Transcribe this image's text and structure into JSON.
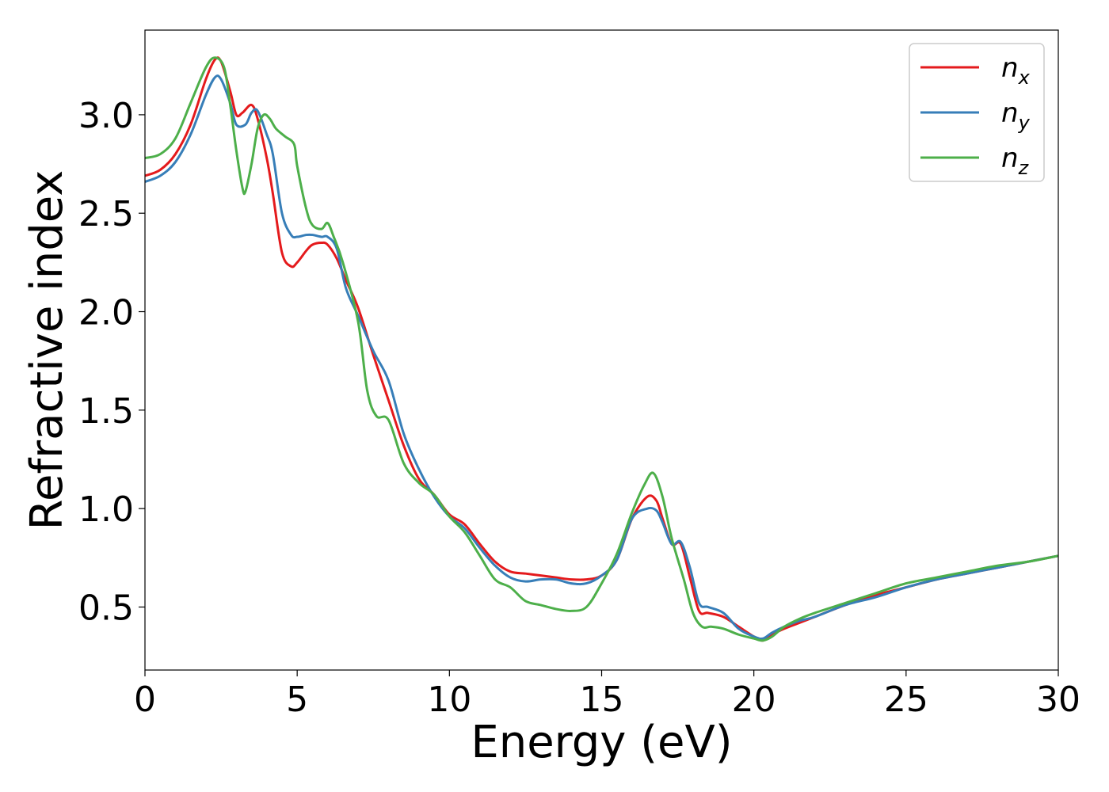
{
  "chart_data": {
    "type": "line",
    "title": "",
    "xlabel": "Energy (eV)",
    "ylabel": "Refractive index",
    "xlim": [
      0,
      30
    ],
    "ylim": [
      0.18,
      3.43
    ],
    "xticks": [
      0,
      5,
      10,
      15,
      20,
      25,
      30
    ],
    "xtick_labels": [
      "0",
      "5",
      "10",
      "15",
      "20",
      "25",
      "30"
    ],
    "yticks": [
      0.5,
      1.0,
      1.5,
      2.0,
      2.5,
      3.0
    ],
    "ytick_labels": [
      "0.5",
      "1.0",
      "1.5",
      "2.0",
      "2.5",
      "3.0"
    ],
    "grid": false,
    "legend_position": "top-right",
    "series": [
      {
        "name": "n",
        "subscript": "x",
        "color": "#e41a1c",
        "x": [
          0,
          0.5,
          1,
          1.5,
          2,
          2.3,
          2.5,
          2.8,
          3.0,
          3.2,
          3.5,
          3.7,
          4.0,
          4.2,
          4.5,
          4.8,
          5.0,
          5.3,
          5.5,
          5.8,
          6.0,
          6.3,
          6.6,
          7.0,
          7.5,
          8.0,
          8.5,
          9.0,
          9.5,
          10.0,
          10.5,
          11.0,
          11.5,
          12.0,
          12.5,
          13.0,
          13.5,
          14.0,
          14.5,
          15.0,
          15.5,
          16.0,
          16.5,
          16.8,
          17.0,
          17.3,
          17.6,
          17.9,
          18.2,
          18.5,
          19.0,
          19.5,
          20.0,
          20.3,
          20.6,
          21.0,
          21.5,
          22.0,
          23.0,
          24.0,
          25.0,
          26.0,
          27.0,
          28.0,
          29.0,
          30.0
        ],
        "y": [
          2.69,
          2.72,
          2.8,
          2.95,
          3.18,
          3.28,
          3.27,
          3.12,
          3.0,
          3.01,
          3.05,
          2.98,
          2.78,
          2.6,
          2.3,
          2.23,
          2.25,
          2.31,
          2.34,
          2.35,
          2.34,
          2.27,
          2.16,
          2.02,
          1.78,
          1.55,
          1.32,
          1.15,
          1.07,
          0.97,
          0.92,
          0.82,
          0.73,
          0.68,
          0.67,
          0.66,
          0.65,
          0.64,
          0.64,
          0.66,
          0.74,
          0.95,
          1.06,
          1.04,
          0.95,
          0.82,
          0.82,
          0.65,
          0.48,
          0.47,
          0.45,
          0.4,
          0.35,
          0.33,
          0.36,
          0.39,
          0.42,
          0.45,
          0.51,
          0.56,
          0.6,
          0.64,
          0.67,
          0.7,
          0.73,
          0.76
        ]
      },
      {
        "name": "n",
        "subscript": "y",
        "color": "#377eb8",
        "x": [
          0,
          0.5,
          1,
          1.5,
          2,
          2.3,
          2.5,
          2.8,
          3.0,
          3.3,
          3.5,
          3.7,
          4.0,
          4.2,
          4.5,
          4.8,
          5.0,
          5.3,
          5.5,
          5.8,
          6.0,
          6.3,
          6.6,
          7.0,
          7.5,
          8.0,
          8.5,
          9.0,
          9.5,
          10.0,
          10.5,
          11.0,
          11.5,
          12.0,
          12.5,
          13.0,
          13.5,
          14.0,
          14.5,
          15.0,
          15.5,
          16.0,
          16.5,
          16.8,
          17.0,
          17.3,
          17.6,
          17.9,
          18.2,
          18.5,
          19.0,
          19.5,
          20.0,
          20.3,
          20.6,
          21.0,
          21.5,
          22.0,
          23.0,
          24.0,
          25.0,
          26.0,
          27.0,
          28.0,
          29.0,
          30.0
        ],
        "y": [
          2.66,
          2.69,
          2.76,
          2.9,
          3.1,
          3.19,
          3.18,
          3.06,
          2.95,
          2.95,
          3.01,
          3.02,
          2.9,
          2.8,
          2.5,
          2.39,
          2.38,
          2.39,
          2.39,
          2.38,
          2.38,
          2.32,
          2.12,
          1.98,
          1.8,
          1.65,
          1.38,
          1.2,
          1.06,
          0.96,
          0.9,
          0.8,
          0.71,
          0.65,
          0.63,
          0.64,
          0.64,
          0.62,
          0.62,
          0.66,
          0.74,
          0.95,
          1.0,
          0.99,
          0.93,
          0.82,
          0.83,
          0.7,
          0.52,
          0.5,
          0.47,
          0.39,
          0.35,
          0.34,
          0.37,
          0.4,
          0.43,
          0.45,
          0.51,
          0.55,
          0.6,
          0.64,
          0.67,
          0.7,
          0.73,
          0.76
        ]
      },
      {
        "name": "n",
        "subscript": "z",
        "color": "#4daf4a",
        "x": [
          0,
          0.5,
          1,
          1.5,
          2,
          2.3,
          2.6,
          2.8,
          3.0,
          3.2,
          3.3,
          3.5,
          3.7,
          3.9,
          4.1,
          4.3,
          4.6,
          4.9,
          5.0,
          5.3,
          5.5,
          5.8,
          6.0,
          6.2,
          6.5,
          7.0,
          7.3,
          7.6,
          8.0,
          8.5,
          9.0,
          9.5,
          10.0,
          10.5,
          11.0,
          11.5,
          12.0,
          12.5,
          13.0,
          13.5,
          14.0,
          14.5,
          15.0,
          15.5,
          16.0,
          16.4,
          16.7,
          17.0,
          17.3,
          17.7,
          18.0,
          18.3,
          18.6,
          19.0,
          19.5,
          20.0,
          20.3,
          20.6,
          21.0,
          21.5,
          22.0,
          23.0,
          24.0,
          25.0,
          26.0,
          27.0,
          28.0,
          29.0,
          30.0
        ],
        "y": [
          2.78,
          2.8,
          2.88,
          3.06,
          3.24,
          3.29,
          3.24,
          3.05,
          2.82,
          2.63,
          2.61,
          2.75,
          2.93,
          3.0,
          2.98,
          2.93,
          2.89,
          2.85,
          2.74,
          2.52,
          2.44,
          2.42,
          2.45,
          2.38,
          2.25,
          1.95,
          1.6,
          1.47,
          1.45,
          1.23,
          1.13,
          1.07,
          0.96,
          0.88,
          0.76,
          0.64,
          0.6,
          0.53,
          0.51,
          0.49,
          0.48,
          0.5,
          0.62,
          0.77,
          0.98,
          1.12,
          1.18,
          1.06,
          0.85,
          0.64,
          0.47,
          0.4,
          0.4,
          0.39,
          0.36,
          0.34,
          0.33,
          0.35,
          0.4,
          0.44,
          0.47,
          0.52,
          0.57,
          0.62,
          0.65,
          0.68,
          0.71,
          0.73,
          0.76
        ]
      }
    ]
  }
}
